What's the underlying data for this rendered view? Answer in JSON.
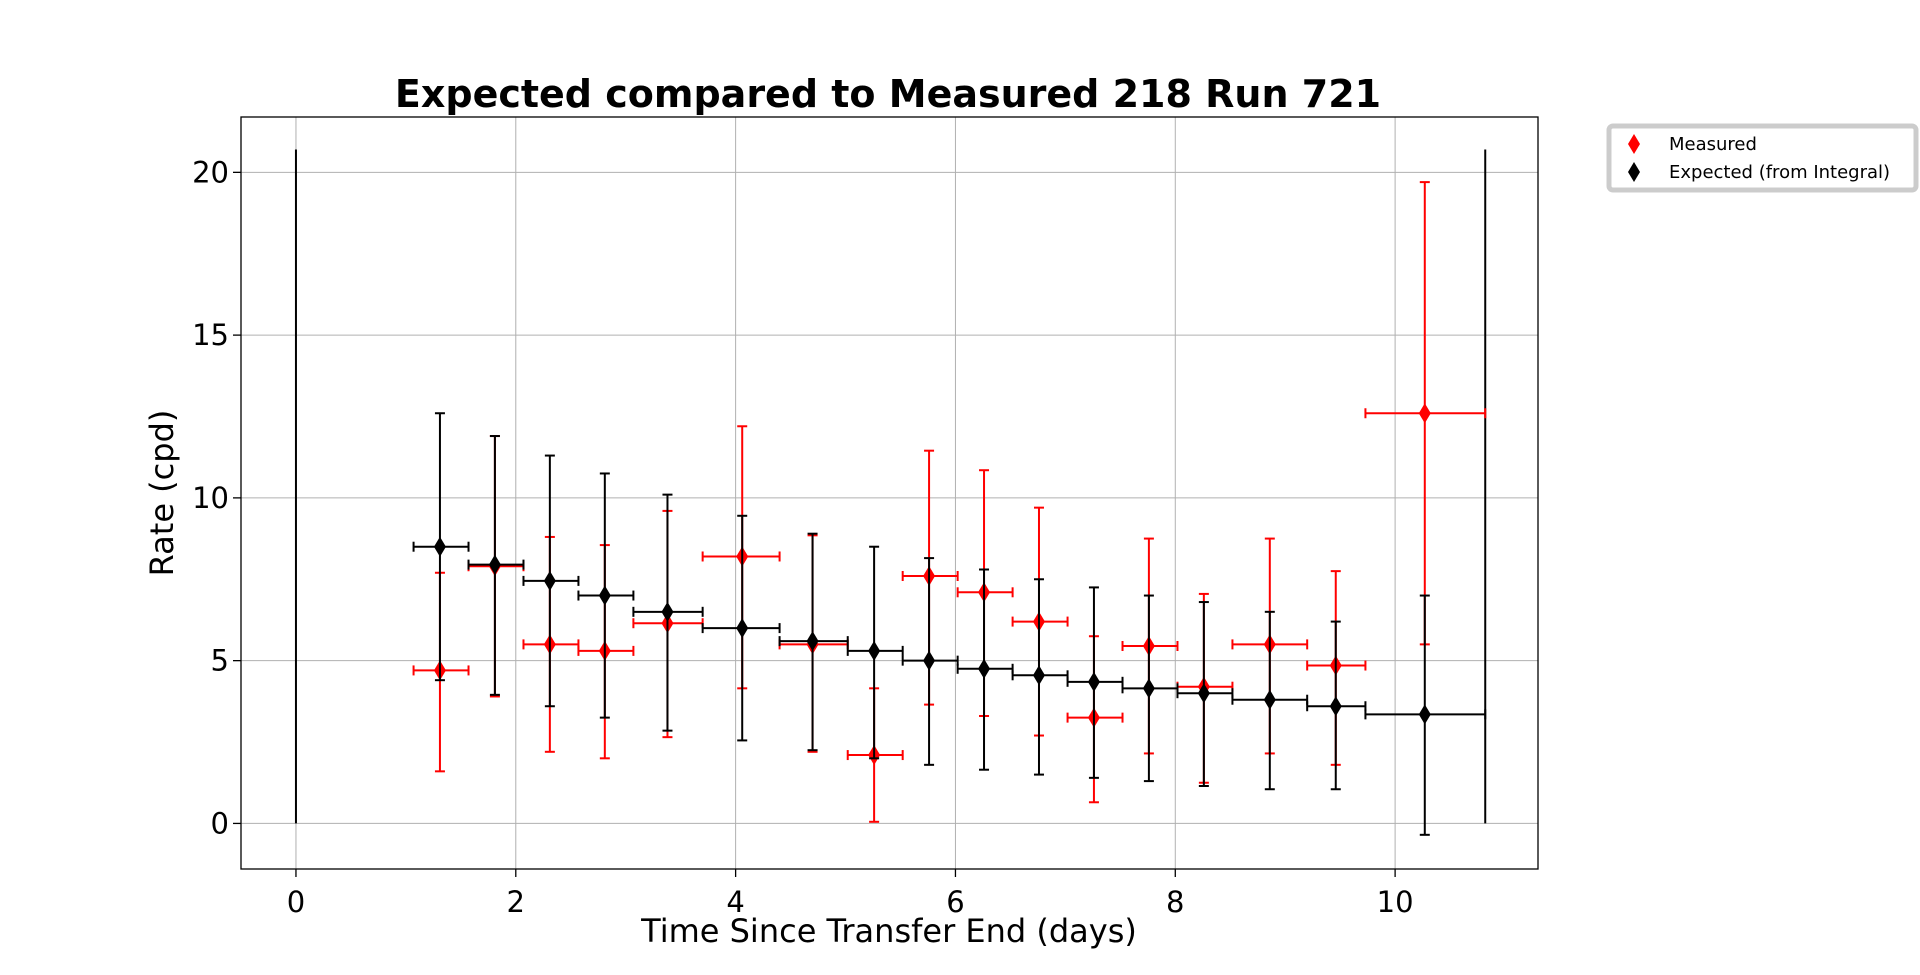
{
  "chart_data": {
    "type": "scatter",
    "title": "Expected compared to Measured 218 Run 721",
    "xlabel": "Time Since Transfer End (days)",
    "ylabel": "Rate (cpd)",
    "xlim": [
      -0.5,
      11.3
    ],
    "ylim": [
      -1.4,
      21.7
    ],
    "x_ticks": [
      0,
      2,
      4,
      6,
      8,
      10
    ],
    "y_ticks": [
      0,
      5,
      10,
      15,
      20
    ],
    "grid": true,
    "legend_position": "outside-top-right",
    "series": [
      {
        "name": "Measured",
        "color": "#ff0000",
        "marker": "diamond",
        "points": [
          {
            "x": 1.31,
            "y": 4.7,
            "xlo": 1.07,
            "xhi": 1.57,
            "ylo": 1.6,
            "yhi": 7.7
          },
          {
            "x": 1.81,
            "y": 7.9,
            "xlo": 1.57,
            "xhi": 2.07,
            "ylo": 3.9,
            "yhi": 11.9
          },
          {
            "x": 2.31,
            "y": 5.5,
            "xlo": 2.07,
            "xhi": 2.57,
            "ylo": 2.2,
            "yhi": 8.8
          },
          {
            "x": 2.81,
            "y": 5.3,
            "xlo": 2.57,
            "xhi": 3.07,
            "ylo": 2.0,
            "yhi": 8.55
          },
          {
            "x": 3.38,
            "y": 6.15,
            "xlo": 3.07,
            "xhi": 3.7,
            "ylo": 2.65,
            "yhi": 9.6
          },
          {
            "x": 4.06,
            "y": 8.2,
            "xlo": 3.7,
            "xhi": 4.4,
            "ylo": 4.15,
            "yhi": 12.2
          },
          {
            "x": 4.7,
            "y": 5.5,
            "xlo": 4.4,
            "xhi": 5.02,
            "ylo": 2.2,
            "yhi": 8.85
          },
          {
            "x": 5.26,
            "y": 2.1,
            "xlo": 5.02,
            "xhi": 5.52,
            "ylo": 0.05,
            "yhi": 4.15
          },
          {
            "x": 5.76,
            "y": 7.6,
            "xlo": 5.52,
            "xhi": 6.02,
            "ylo": 3.65,
            "yhi": 11.45
          },
          {
            "x": 6.26,
            "y": 7.1,
            "xlo": 6.02,
            "xhi": 6.52,
            "ylo": 3.3,
            "yhi": 10.85
          },
          {
            "x": 6.76,
            "y": 6.2,
            "xlo": 6.52,
            "xhi": 7.02,
            "ylo": 2.7,
            "yhi": 9.7
          },
          {
            "x": 7.26,
            "y": 3.25,
            "xlo": 7.02,
            "xhi": 7.52,
            "ylo": 0.65,
            "yhi": 5.75
          },
          {
            "x": 7.76,
            "y": 5.45,
            "xlo": 7.52,
            "xhi": 8.02,
            "ylo": 2.15,
            "yhi": 8.75
          },
          {
            "x": 8.26,
            "y": 4.2,
            "xlo": 8.02,
            "xhi": 8.52,
            "ylo": 1.25,
            "yhi": 7.05
          },
          {
            "x": 8.86,
            "y": 5.5,
            "xlo": 8.52,
            "xhi": 9.2,
            "ylo": 2.15,
            "yhi": 8.75
          },
          {
            "x": 9.46,
            "y": 4.85,
            "xlo": 9.2,
            "xhi": 9.73,
            "ylo": 1.8,
            "yhi": 7.75
          },
          {
            "x": 10.27,
            "y": 12.6,
            "xlo": 9.73,
            "xhi": 10.82,
            "ylo": 5.5,
            "yhi": 19.7
          }
        ]
      },
      {
        "name": "Expected (from Integral)",
        "color": "#000000",
        "marker": "diamond",
        "points": [
          {
            "x": 1.31,
            "y": 8.5,
            "xlo": 1.07,
            "xhi": 1.57,
            "ylo": 4.4,
            "yhi": 12.6
          },
          {
            "x": 1.81,
            "y": 7.95,
            "xlo": 1.57,
            "xhi": 2.07,
            "ylo": 3.95,
            "yhi": 11.9
          },
          {
            "x": 2.31,
            "y": 7.45,
            "xlo": 2.07,
            "xhi": 2.57,
            "ylo": 3.6,
            "yhi": 11.3
          },
          {
            "x": 2.81,
            "y": 7.0,
            "xlo": 2.57,
            "xhi": 3.07,
            "ylo": 3.25,
            "yhi": 10.75
          },
          {
            "x": 3.38,
            "y": 6.5,
            "xlo": 3.07,
            "xhi": 3.7,
            "ylo": 2.85,
            "yhi": 10.1
          },
          {
            "x": 4.06,
            "y": 6.0,
            "xlo": 3.7,
            "xhi": 4.4,
            "ylo": 2.55,
            "yhi": 9.45
          },
          {
            "x": 4.7,
            "y": 5.6,
            "xlo": 4.4,
            "xhi": 5.02,
            "ylo": 2.25,
            "yhi": 8.9
          },
          {
            "x": 5.26,
            "y": 5.3,
            "xlo": 5.02,
            "xhi": 5.52,
            "ylo": 2.0,
            "yhi": 8.5
          },
          {
            "x": 5.76,
            "y": 5.0,
            "xlo": 5.52,
            "xhi": 6.02,
            "ylo": 1.8,
            "yhi": 8.15
          },
          {
            "x": 6.26,
            "y": 4.75,
            "xlo": 6.02,
            "xhi": 6.52,
            "ylo": 1.65,
            "yhi": 7.8
          },
          {
            "x": 6.76,
            "y": 4.55,
            "xlo": 6.52,
            "xhi": 7.02,
            "ylo": 1.5,
            "yhi": 7.5
          },
          {
            "x": 7.26,
            "y": 4.35,
            "xlo": 7.02,
            "xhi": 7.52,
            "ylo": 1.4,
            "yhi": 7.25
          },
          {
            "x": 7.76,
            "y": 4.15,
            "xlo": 7.52,
            "xhi": 8.02,
            "ylo": 1.3,
            "yhi": 7.0
          },
          {
            "x": 8.26,
            "y": 4.0,
            "xlo": 8.02,
            "xhi": 8.52,
            "ylo": 1.15,
            "yhi": 6.8
          },
          {
            "x": 8.86,
            "y": 3.8,
            "xlo": 8.52,
            "xhi": 9.2,
            "ylo": 1.05,
            "yhi": 6.5
          },
          {
            "x": 9.46,
            "y": 3.6,
            "xlo": 9.2,
            "xhi": 9.73,
            "ylo": 1.05,
            "yhi": 6.2
          },
          {
            "x": 10.27,
            "y": 3.35,
            "xlo": 9.73,
            "xhi": 10.82,
            "ylo": -0.35,
            "yhi": 7.0
          }
        ]
      }
    ],
    "extra_lines": [
      {
        "x": 0,
        "y0": 0,
        "y1": 20.7,
        "color": "#000000"
      },
      {
        "x": 10.82,
        "y0": 0,
        "y1": 20.7,
        "color": "#000000"
      }
    ]
  }
}
